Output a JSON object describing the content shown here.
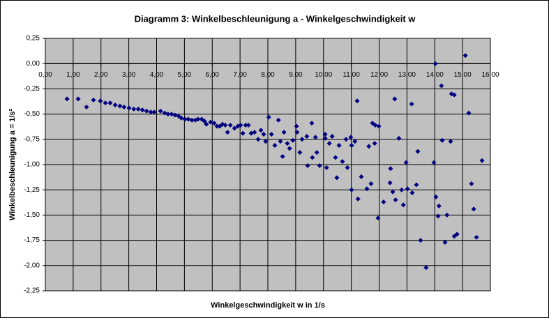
{
  "chart_data": {
    "type": "scatter",
    "title": "Diagramm 3: Winkelbeschleunigung a - Winkelgeschwindigkeit w",
    "x_label": "Winkelgeschwindigkeit w in 1/s",
    "y_label": "Winkelbeschleunigung a = 1/s²",
    "color": "#000080",
    "grid": true,
    "xlim": [
      0,
      16
    ],
    "ylim": [
      -2.25,
      0.25
    ],
    "xticks": [
      {
        "value": 0,
        "label": "0,00"
      },
      {
        "value": 1,
        "label": "1,00"
      },
      {
        "value": 2,
        "label": "2,00"
      },
      {
        "value": 3,
        "label": "3,00"
      },
      {
        "value": 4,
        "label": "4,00"
      },
      {
        "value": 5,
        "label": "5,00"
      },
      {
        "value": 6,
        "label": "6,00"
      },
      {
        "value": 7,
        "label": "7,00"
      },
      {
        "value": 8,
        "label": "8,00"
      },
      {
        "value": 9,
        "label": "9,00"
      },
      {
        "value": 10,
        "label": "10,00"
      },
      {
        "value": 11,
        "label": "11,00"
      },
      {
        "value": 12,
        "label": "12,00"
      },
      {
        "value": 13,
        "label": "13,00"
      },
      {
        "value": 14,
        "label": "14,00"
      },
      {
        "value": 15,
        "label": "15,00"
      },
      {
        "value": 16,
        "label": "16,00"
      }
    ],
    "yticks": [
      {
        "value": 0.25,
        "label": "0,25"
      },
      {
        "value": 0,
        "label": "0,00"
      },
      {
        "value": -0.25,
        "label": "-0,25"
      },
      {
        "value": -0.5,
        "label": "-0,50"
      },
      {
        "value": -0.75,
        "label": "-0,75"
      },
      {
        "value": -1,
        "label": "-1,00"
      },
      {
        "value": -1.25,
        "label": "-1,25"
      },
      {
        "value": -1.5,
        "label": "-1,50"
      },
      {
        "value": -1.75,
        "label": "-1,75"
      },
      {
        "value": -2,
        "label": "-2,00"
      },
      {
        "value": -2.25,
        "label": "-2,25"
      }
    ],
    "x": [
      0.78,
      1.18,
      1.48,
      1.73,
      1.98,
      2.16,
      2.33,
      2.51,
      2.68,
      2.83,
      3.01,
      3.18,
      3.34,
      3.49,
      3.64,
      3.79,
      3.91,
      4.14,
      4.29,
      4.41,
      4.54,
      4.66,
      4.79,
      4.89,
      5.02,
      5.14,
      5.27,
      5.39,
      5.49,
      5.62,
      5.72,
      5.79,
      5.94,
      6.07,
      6.17,
      6.27,
      6.37,
      6.47,
      6.55,
      6.65,
      6.8,
      6.92,
      7.02,
      7.1,
      7.2,
      7.3,
      7.4,
      7.52,
      7.65,
      7.75,
      7.85,
      7.92,
      8.03,
      8.13,
      8.25,
      8.38,
      8.45,
      8.53,
      8.58,
      8.7,
      8.78,
      8.9,
      9.03,
      9.05,
      9.15,
      9.23,
      9.4,
      9.43,
      9.58,
      9.6,
      9.71,
      9.76,
      9.86,
      10.06,
      10.06,
      10.11,
      10.21,
      10.31,
      10.43,
      10.48,
      10.56,
      10.68,
      10.81,
      10.86,
      10.98,
      11.01,
      11.01,
      11.13,
      11.21,
      11.24,
      11.36,
      11.56,
      11.63,
      11.71,
      11.76,
      11.84,
      11.86,
      11.96,
      11.99,
      12.16,
      12.39,
      12.41,
      12.49,
      12.56,
      12.59,
      12.71,
      12.81,
      12.87,
      12.97,
      13.02,
      13.17,
      13.19,
      13.34,
      13.39,
      13.49,
      13.69,
      13.97,
      14.02,
      14.04,
      14.12,
      14.15,
      14.24,
      14.27,
      14.37,
      14.44,
      14.57,
      14.6,
      14.7,
      14.7,
      14.8,
      15.1,
      15.22,
      15.32,
      15.4,
      15.5,
      15.7
    ],
    "values": [
      -0.35,
      -0.35,
      -0.43,
      -0.36,
      -0.37,
      -0.39,
      -0.39,
      -0.41,
      -0.42,
      -0.43,
      -0.44,
      -0.45,
      -0.45,
      -0.46,
      -0.47,
      -0.48,
      -0.48,
      -0.47,
      -0.49,
      -0.5,
      -0.5,
      -0.51,
      -0.52,
      -0.54,
      -0.55,
      -0.55,
      -0.56,
      -0.56,
      -0.55,
      -0.55,
      -0.57,
      -0.6,
      -0.58,
      -0.59,
      -0.62,
      -0.62,
      -0.6,
      -0.61,
      -0.68,
      -0.61,
      -0.64,
      -0.62,
      -0.61,
      -0.69,
      -0.61,
      -0.61,
      -0.69,
      -0.68,
      -0.75,
      -0.66,
      -0.7,
      -0.77,
      -0.53,
      -0.7,
      -0.81,
      -0.56,
      -0.77,
      -0.92,
      -0.68,
      -0.79,
      -0.84,
      -0.76,
      -0.62,
      -0.68,
      -0.88,
      -0.75,
      -0.72,
      -1.01,
      -0.59,
      -0.93,
      -0.73,
      -0.88,
      -1.01,
      -0.7,
      -0.74,
      -1.03,
      -0.79,
      -0.72,
      -0.93,
      -1.13,
      -0.81,
      -0.97,
      -0.75,
      -1.03,
      -0.73,
      -0.81,
      -1.25,
      -0.77,
      -0.37,
      -1.34,
      -1.12,
      -1.24,
      -0.82,
      -1.19,
      -0.59,
      -0.79,
      -0.61,
      -1.53,
      -0.62,
      -1.37,
      -1.18,
      -1.04,
      -1.27,
      -0.35,
      -1.35,
      -0.74,
      -1.25,
      -1.4,
      -0.98,
      -1.24,
      -0.4,
      -1.28,
      -1.2,
      -0.87,
      -1.75,
      -2.02,
      -0.98,
      0,
      -1.32,
      -1.51,
      -1.41,
      -0.22,
      -0.76,
      -1.77,
      -1.5,
      -0.77,
      -0.3,
      -0.31,
      -1.71,
      -1.69,
      0.08,
      -0.49,
      -1.19,
      -1.44,
      -1.72,
      -0.96
    ]
  }
}
